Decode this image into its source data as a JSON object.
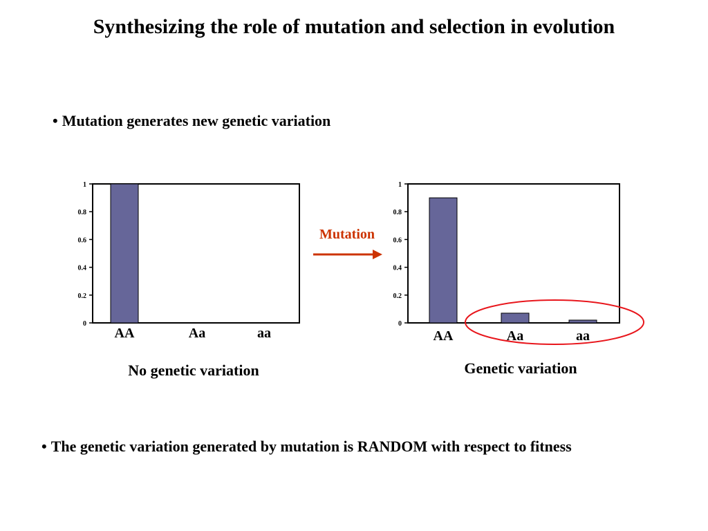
{
  "slide": {
    "title": "Synthesizing the role of mutation and selection in evolution",
    "bullet_top": "Mutation generates new genetic variation",
    "bullet_bottom": "The genetic variation generated by mutation is RANDOM with respect to fitness",
    "caption_left": "No genetic variation",
    "caption_right": "Genetic variation",
    "arrow_label": "Mutation"
  },
  "colors": {
    "bar_fill": "#666699",
    "arrow": "#cc3300",
    "highlight": "#e8151b",
    "arrow_label": "#cc3300"
  },
  "chart_data": [
    {
      "type": "bar",
      "categories": [
        "AA",
        "Aa",
        "aa"
      ],
      "values": [
        1.0,
        0.0,
        0.0
      ],
      "ylim": [
        0,
        1
      ],
      "yticks": [
        "0",
        "0.2",
        "0.4",
        "0.6",
        "0.8",
        "1"
      ],
      "grid": false
    },
    {
      "type": "bar",
      "categories": [
        "AA",
        "Aa",
        "aa"
      ],
      "values": [
        0.9,
        0.07,
        0.02
      ],
      "ylim": [
        0,
        1
      ],
      "yticks": [
        "0",
        "0.2",
        "0.4",
        "0.6",
        "0.8",
        "1"
      ],
      "grid": false
    }
  ]
}
